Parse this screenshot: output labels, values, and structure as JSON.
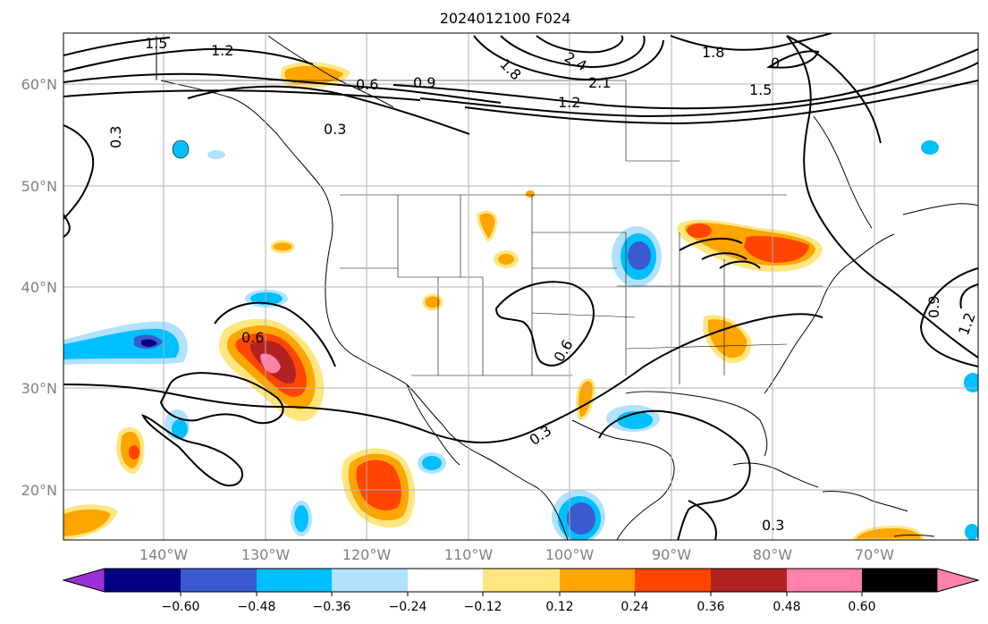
{
  "title": "2024012100 F024",
  "lat_labels": [
    "60°N",
    "50°N",
    "40°N",
    "30°N",
    "20°N"
  ],
  "lon_labels": [
    "140°W",
    "130°W",
    "120°W",
    "110°W",
    "100°W",
    "90°W",
    "80°W",
    "70°W"
  ],
  "contour_labels": [
    "1.5",
    "1.2",
    "0.6",
    "0.9",
    "0.3",
    "0.3",
    "1.8",
    "2.4",
    "2.1",
    "1.2",
    "1.8",
    "0",
    "1.5",
    "0.6",
    "0.6",
    "0.3",
    "0.3",
    "0.9",
    "1.2"
  ],
  "colorbar": {
    "ticks": [
      "−0.60",
      "−0.48",
      "−0.36",
      "−0.24",
      "−0.12",
      "0.12",
      "0.24",
      "0.36",
      "0.48",
      "0.60"
    ],
    "colors": [
      "#9b30d9",
      "#000080",
      "#3a5bcf",
      "#00bfff",
      "#b0e2ff",
      "#ffffff",
      "#ffe680",
      "#ffa500",
      "#ff4500",
      "#b22222",
      "#ff82ab"
    ]
  }
}
